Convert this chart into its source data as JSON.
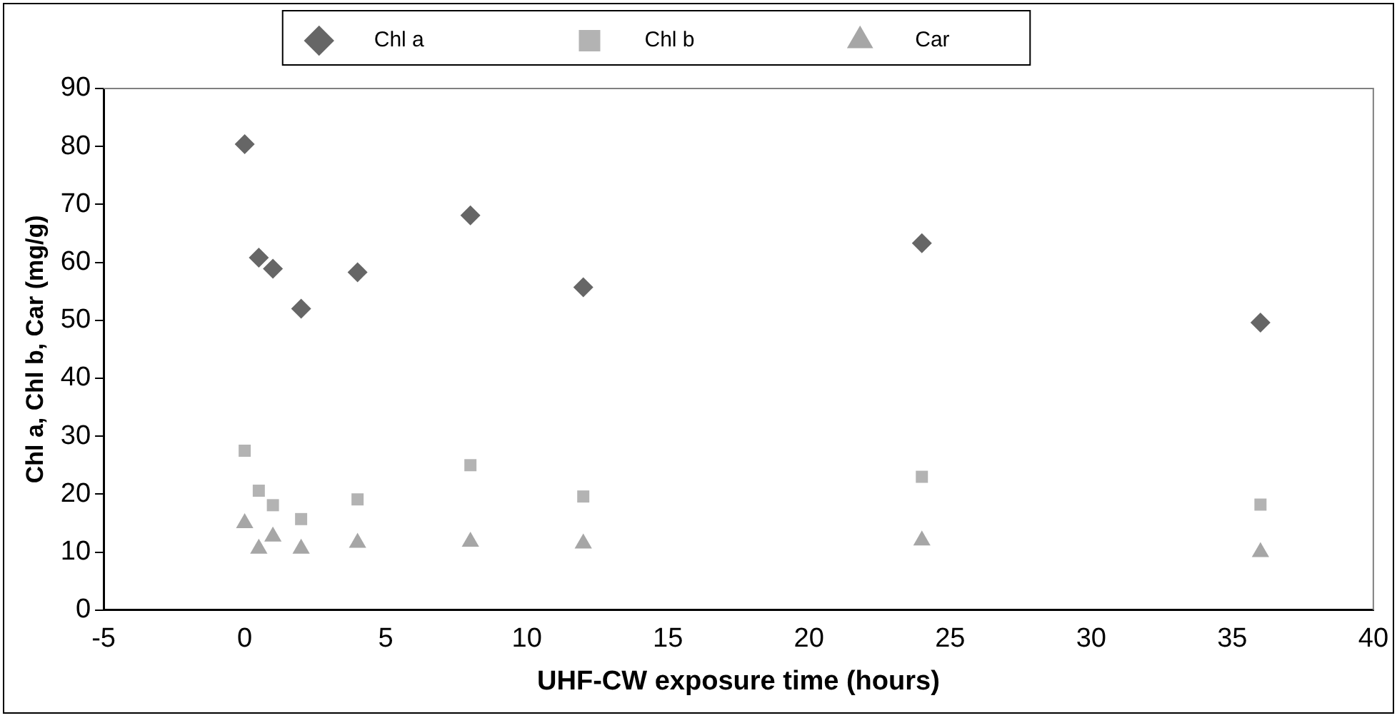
{
  "chart_data": {
    "type": "scatter",
    "xlabel": "UHF-CW exposure time (hours)",
    "ylabel": "Chl a, Chl b, Car (mg/g)",
    "x": [
      0,
      0.5,
      1,
      2,
      4,
      8,
      12,
      24,
      36
    ],
    "series": [
      {
        "name": "Chl a",
        "color": "#666666",
        "marker": "diamond",
        "values": [
          80.4,
          60.8,
          58.9,
          52,
          58.3,
          68.1,
          55.7,
          63.3,
          49.6
        ]
      },
      {
        "name": "Chl b",
        "color": "#b3b3b3",
        "marker": "square",
        "values": [
          27.5,
          20.6,
          18.1,
          15.7,
          19.1,
          25,
          19.6,
          23,
          18.2
        ]
      },
      {
        "name": "Car",
        "color": "#a6a6a6",
        "marker": "triangle",
        "values": [
          15,
          10.6,
          12.7,
          10.6,
          11.6,
          11.8,
          11.5,
          12,
          10
        ]
      }
    ],
    "xlim": [
      -5,
      40
    ],
    "xticks": [
      -5,
      0,
      5,
      10,
      15,
      20,
      25,
      30,
      35,
      40
    ],
    "ylim": [
      0,
      90
    ],
    "yticks": [
      0,
      10,
      20,
      30,
      40,
      50,
      60,
      70,
      80,
      90
    ],
    "grid": false,
    "legend": "top"
  }
}
